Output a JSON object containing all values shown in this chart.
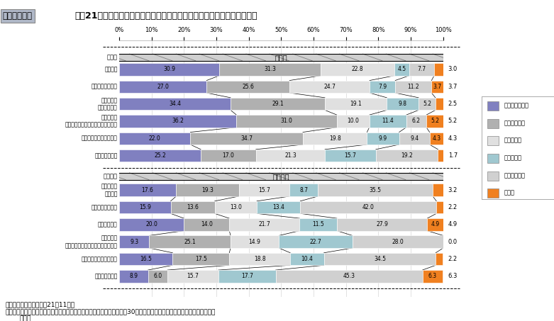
{
  "title_box": "図３－５－３",
  "title_main": "平成21年度　「地震」に関する地域別・企業規模別（大企業，中堅企業）",
  "row_labels_large": [
    "東海地震",
    "東南海・南海地震",
    "首都直下地震",
    "日本海溝・千島海溝周辺海溝型地震",
    "中四国・近畿圏直下地震",
    "所在していない"
  ],
  "row_labels_medium": [
    "東海地震",
    "東南海・南海地震",
    "首都直下地震",
    "日本海溝・千島海溝周辺海溝型地震",
    "中四国・近畿圏直下地震",
    "所在していない"
  ],
  "large_ref": [
    false,
    false,
    true,
    true,
    false,
    false
  ],
  "medium_ref": [
    true,
    false,
    false,
    true,
    false,
    false
  ],
  "large_data": [
    [
      30.9,
      31.3,
      22.8,
      4.5,
      7.7,
      3.0
    ],
    [
      27.0,
      25.6,
      24.7,
      7.9,
      11.2,
      3.7
    ],
    [
      34.4,
      29.1,
      19.1,
      9.8,
      5.2,
      2.5
    ],
    [
      36.2,
      31.0,
      10.0,
      11.4,
      6.2,
      5.2
    ],
    [
      22.0,
      34.7,
      19.8,
      9.9,
      9.4,
      4.3
    ],
    [
      25.2,
      17.0,
      21.3,
      15.7,
      19.2,
      1.7
    ]
  ],
  "medium_data": [
    [
      17.6,
      19.3,
      15.7,
      8.7,
      35.5,
      3.2
    ],
    [
      15.9,
      13.6,
      13.0,
      13.4,
      42.0,
      2.2
    ],
    [
      20.0,
      14.0,
      21.7,
      11.5,
      27.9,
      4.9
    ],
    [
      9.3,
      25.1,
      14.9,
      22.7,
      28.0,
      0.0
    ],
    [
      16.5,
      17.5,
      18.8,
      10.4,
      34.5,
      2.2
    ],
    [
      8.9,
      6.0,
      15.7,
      17.7,
      45.3,
      6.3
    ]
  ],
  "colors": [
    "#8080c0",
    "#b0b0b0",
    "#e0e0e0",
    "#a0c8d0",
    "#d0d0d0",
    "#f08020"
  ],
  "legend_labels": [
    "策定済みである",
    "策定中である",
    "予定がある",
    "予定はない",
    "知らなかった",
    "無回答"
  ],
  "bg_color": "#ffffff",
  "footnote1": "資料：内閣府調べ（平成21年11月）",
  "footnote2": "（注）日本海溝・千島海溝周辺海溝型地震の地域については，回答数が30社以下とサンプル数が少ないため参考値として",
  "footnote3": "いる。"
}
